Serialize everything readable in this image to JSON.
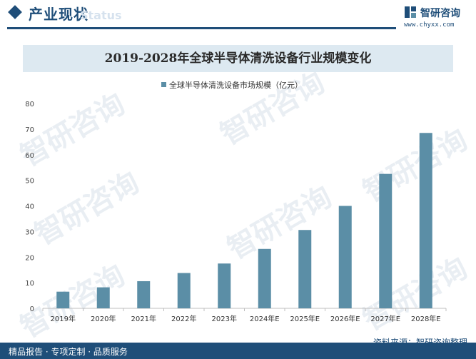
{
  "header": {
    "section_title": "产业现状",
    "section_subtitle": "Status",
    "logo_name": "智研咨询",
    "logo_url": "www.chyxx.com"
  },
  "watermark_text": "智研咨询",
  "footer": {
    "left_text": "精品报告 · 专项定制 · 品质服务",
    "source_text": "资料来源：智研咨询整理"
  },
  "colors": {
    "brand": "#1f4e79",
    "bar": "#5b8ea6",
    "title_band": "#dde9f1"
  },
  "chart_data": {
    "type": "bar",
    "title": "2019-2028年全球半导体清洗设备行业规模变化",
    "categories": [
      "2019年",
      "2020年",
      "2021年",
      "2022年",
      "2023年",
      "2024年E",
      "2025年E",
      "2026年E",
      "2027年E",
      "2028年E"
    ],
    "series": [
      {
        "name": "全球半导体清洗设备市场规模（亿元）",
        "values": [
          6.5,
          8.2,
          10.6,
          13.8,
          17.5,
          23.2,
          30.6,
          40.0,
          52.5,
          68.5
        ]
      }
    ],
    "ylim": [
      0,
      80
    ],
    "yticks": [
      0,
      10,
      20,
      30,
      40,
      50,
      60,
      70,
      80
    ],
    "legend_position": "top-center",
    "grid": false
  }
}
